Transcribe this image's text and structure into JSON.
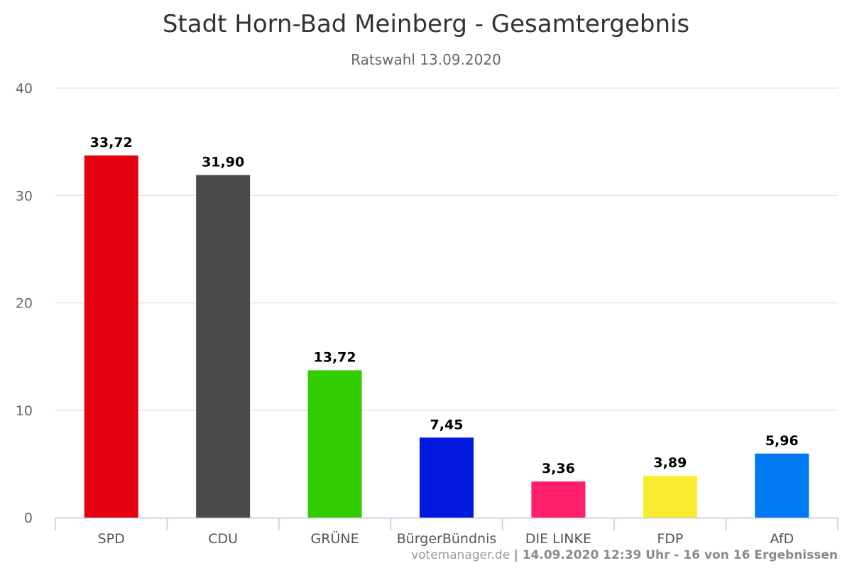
{
  "chart_data": {
    "type": "bar",
    "title": "Stadt Horn-Bad Meinberg - Gesamtergebnis",
    "subtitle": "Ratswahl 13.09.2020",
    "categories": [
      "SPD",
      "CDU",
      "GRÜNE",
      "BürgerBündnis",
      "DIE LINKE",
      "FDP",
      "AfD"
    ],
    "values": [
      33.72,
      31.9,
      13.72,
      7.45,
      3.36,
      3.89,
      5.96
    ],
    "value_labels": [
      "33,72",
      "31,90",
      "13,72",
      "7,45",
      "3,36",
      "3,89",
      "5,96"
    ],
    "colors": [
      "#e3000f",
      "#4a4a4a",
      "#32cd00",
      "#0019dc",
      "#ff1e69",
      "#fbeb30",
      "#0079f2"
    ],
    "ylim": [
      0,
      40
    ],
    "yticks": [
      "0",
      "10",
      "20",
      "30",
      "40"
    ],
    "grid": true,
    "xlabel": "",
    "ylabel": ""
  },
  "footer": {
    "source": "votemanager.de",
    "status": "| 14.09.2020 12:39 Uhr - 16 von 16 Ergebnissen"
  }
}
